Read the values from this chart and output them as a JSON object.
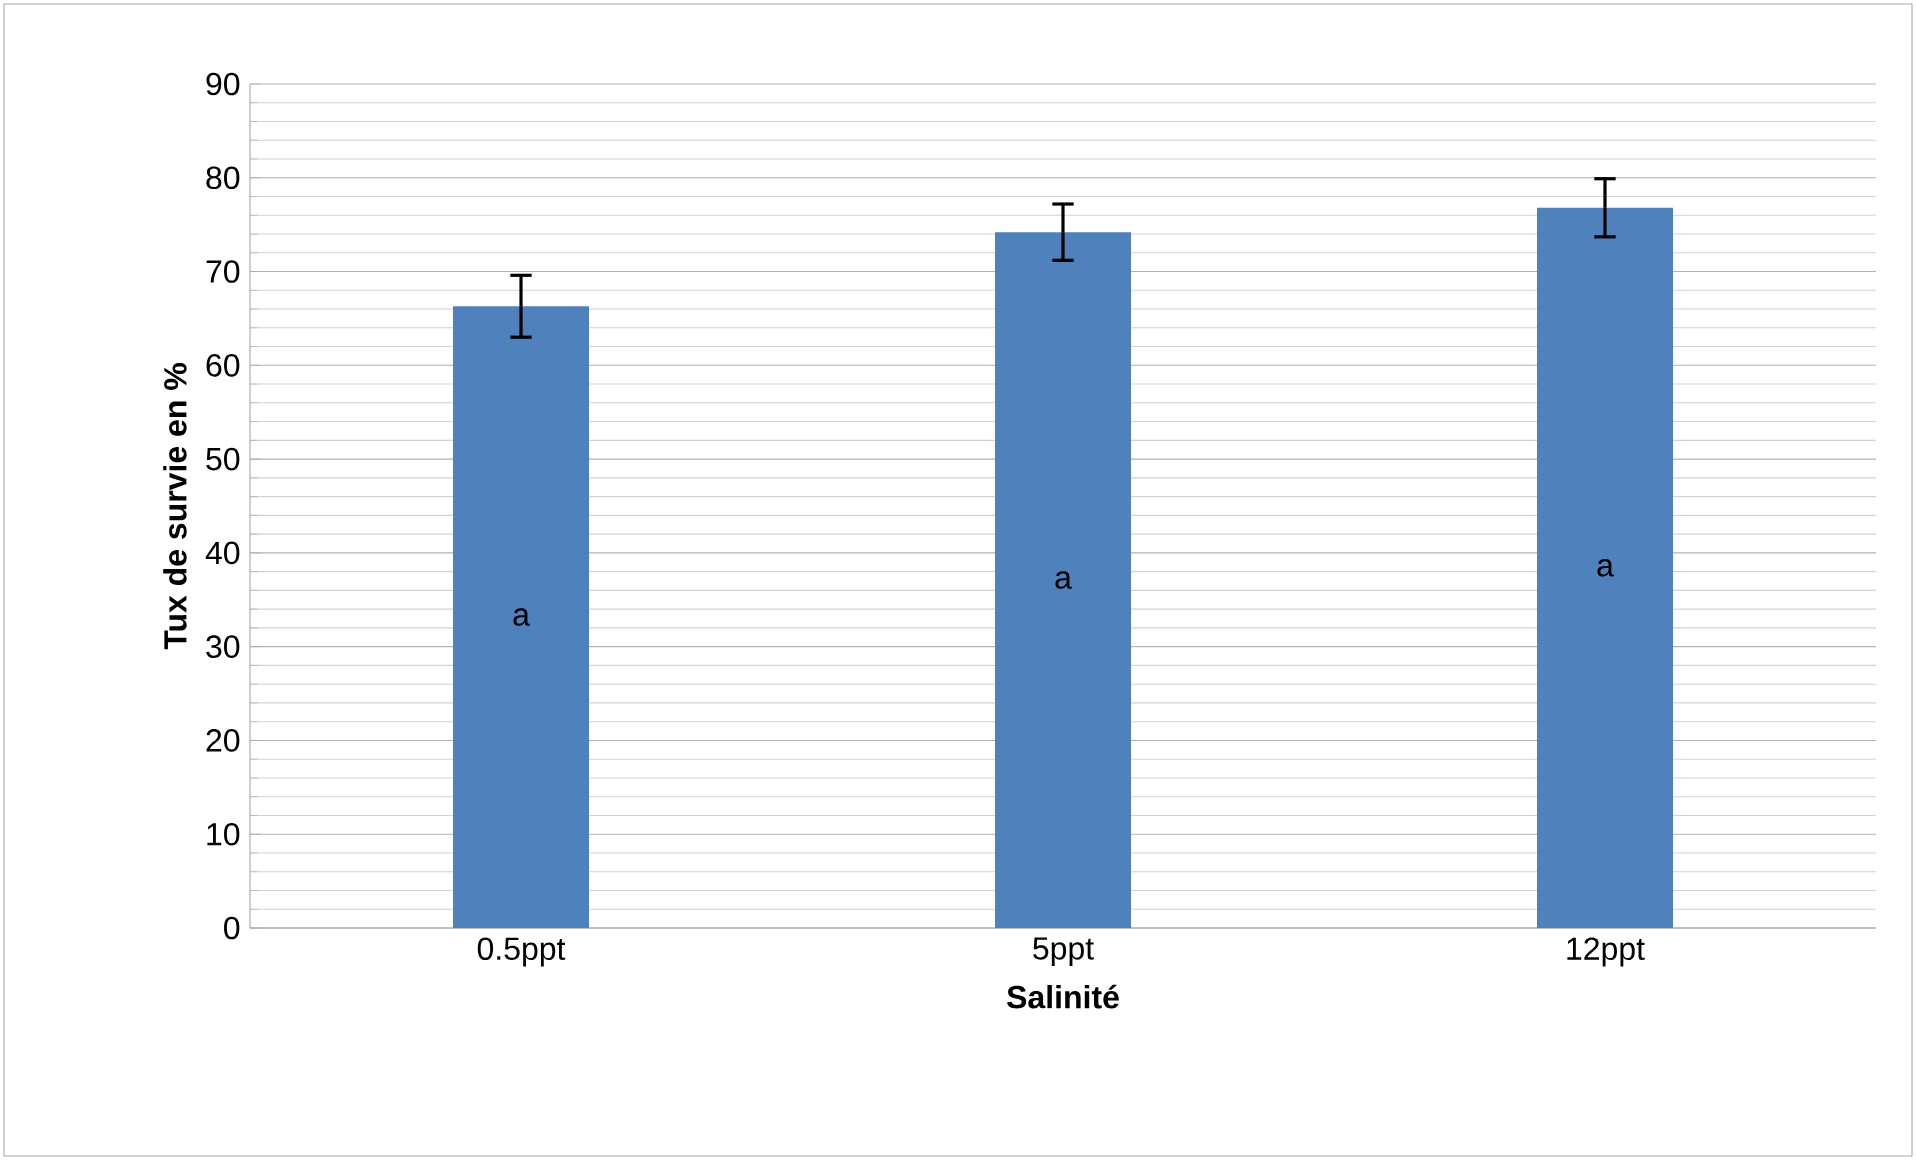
{
  "chart_data": {
    "type": "bar",
    "xlabel": "Salinité",
    "ylabel": "Tux de survie en %",
    "categories": [
      "0.5ppt",
      "5ppt",
      "12ppt"
    ],
    "values": [
      66.3,
      74.2,
      76.8
    ],
    "errors": [
      3.3,
      3.0,
      3.1
    ],
    "color": "#4f81bd",
    "ylim": [
      0,
      90
    ],
    "yticks": [
      0,
      10,
      20,
      30,
      40,
      50,
      60,
      70,
      80,
      90
    ],
    "grid": "y",
    "annotations": [
      "a",
      "a",
      "a"
    ]
  }
}
